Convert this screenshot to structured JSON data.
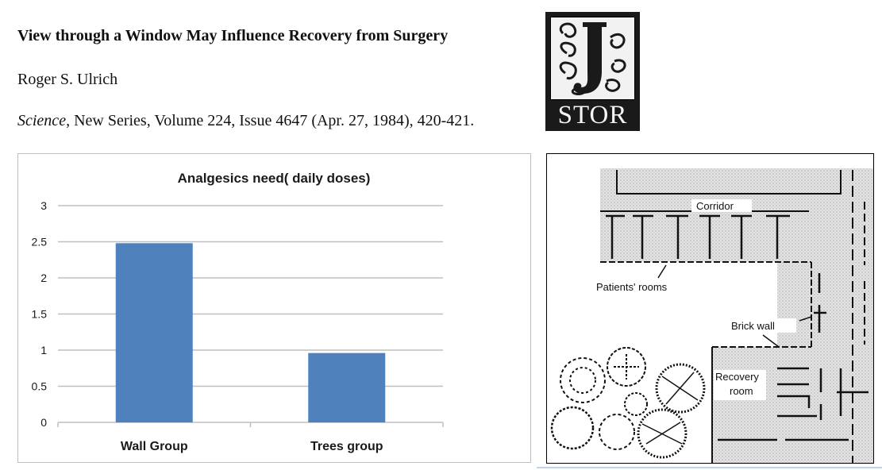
{
  "paper": {
    "title": "View through a Window May Influence Recovery from Surgery",
    "author": "Roger S. Ulrich",
    "journal": "Science",
    "citation_rest": ", New Series, Volume 224, Issue 4647 (Apr. 27, 1984), 420-421."
  },
  "logo": {
    "text": "STOR",
    "letter": "J"
  },
  "chart_data": {
    "type": "bar",
    "title": "Analgesics need( daily doses)",
    "categories": [
      "Wall Group",
      "Trees group"
    ],
    "values": [
      2.48,
      0.96
    ],
    "ylim": [
      0,
      3
    ],
    "yticks": [
      0,
      0.5,
      1,
      1.5,
      2,
      2.5,
      3
    ],
    "ytick_labels": [
      "0",
      "0.5",
      "1",
      "1.5",
      "2",
      "2.5",
      "3"
    ],
    "xlabel": "",
    "ylabel": "",
    "grid": true,
    "bar_color": "#4f81bd",
    "grid_color": "#bfbfbf"
  },
  "floorplan": {
    "labels": {
      "corridor": "Corridor",
      "patients_rooms": "Patients' rooms",
      "brick_wall": "Brick wall",
      "recovery_line1": "Recovery",
      "recovery_line2": "room"
    }
  }
}
